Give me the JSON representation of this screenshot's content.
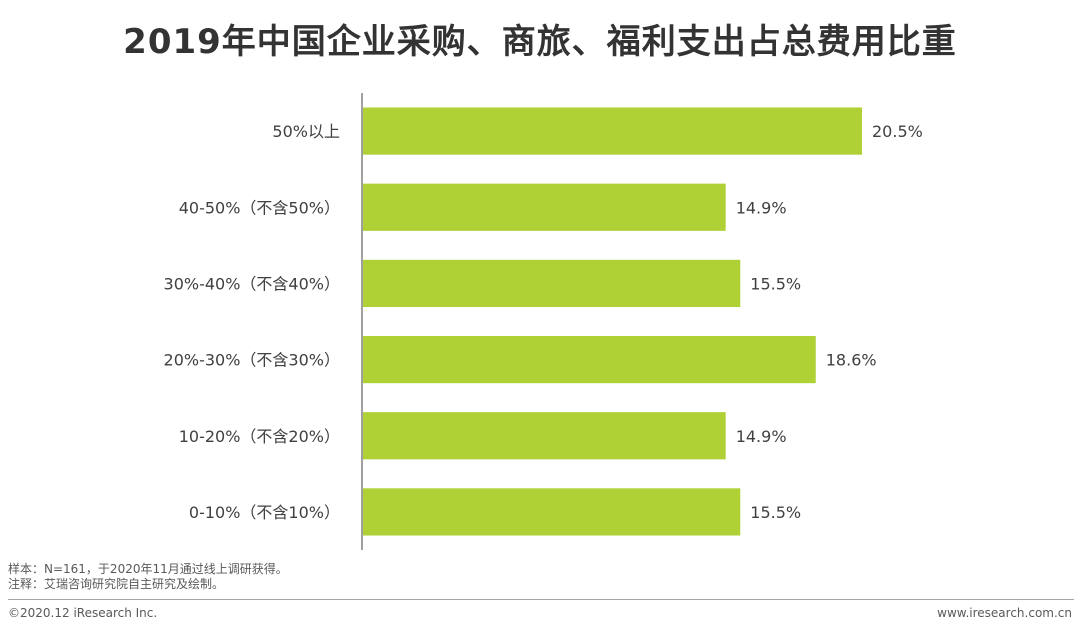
{
  "title": "2019年中国企业采购、商旅、福利支出占总费用比重",
  "chart_data": {
    "type": "bar",
    "orientation": "horizontal",
    "categories": [
      "50%以上",
      "40-50%（不含50%）",
      "30%-40%（不含40%）",
      "20%-30%（不含30%）",
      "10-20%（不含20%）",
      "0-10%（不含10%）"
    ],
    "values": [
      20.5,
      14.9,
      15.5,
      18.6,
      14.9,
      15.5
    ],
    "value_labels": [
      "20.5%",
      "14.9%",
      "15.5%",
      "18.6%",
      "14.9%",
      "15.5%"
    ],
    "title": "2019年中国企业采购、商旅、福利支出占总费用比重",
    "xlabel": "",
    "ylabel": "",
    "xlim": [
      0,
      20.5
    ],
    "grid": false,
    "bar_color": "#b0d136"
  },
  "notes": {
    "sample": "样本：N=161，于2020年11月通过线上调研获得。",
    "note": "注释：艾瑞咨询研究院自主研究及绘制。"
  },
  "footer": {
    "copyright": "©2020.12 iResearch Inc.",
    "website": "www.iresearch.com.cn"
  },
  "colors": {
    "bar": "#b0d136",
    "axis": "#404040",
    "text": "#404040"
  }
}
